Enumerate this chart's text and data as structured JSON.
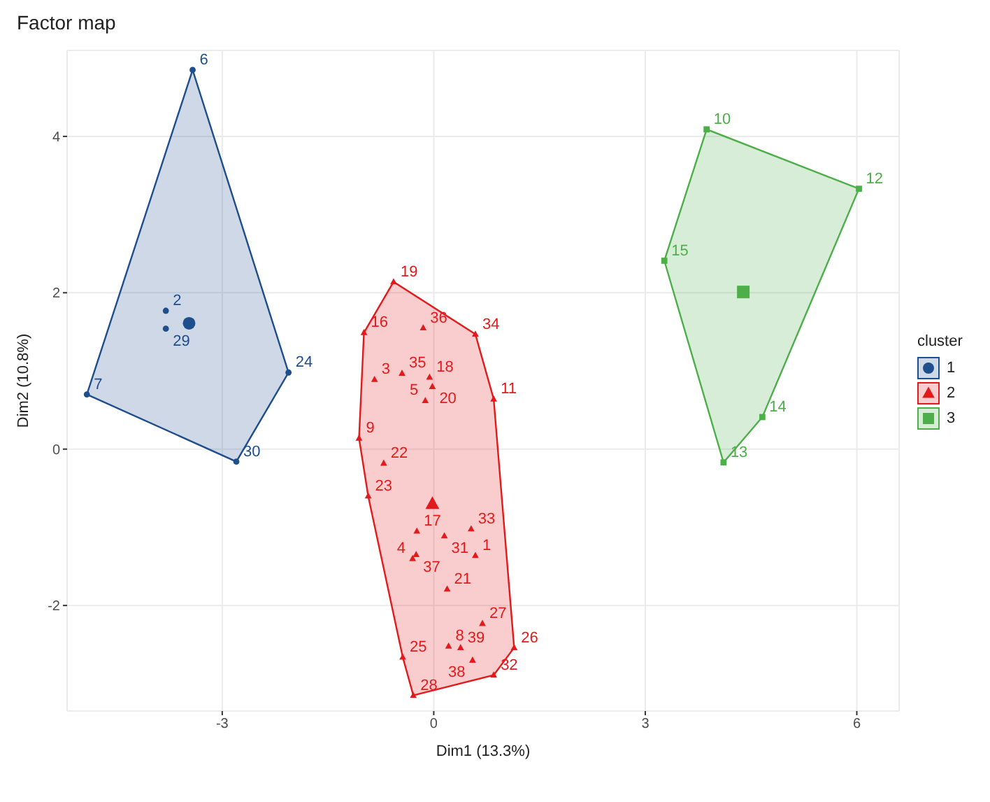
{
  "chart_data": {
    "type": "scatter",
    "title": "Factor map",
    "xlabel": "Dim1 (13.3%)",
    "ylabel": "Dim2 (10.8%)",
    "legend_title": "cluster",
    "legend": "right",
    "grid": true,
    "xlim": [
      -5.2,
      6.6
    ],
    "ylim": [
      -3.35,
      5.1
    ],
    "xticks": [
      -3,
      0,
      3,
      6
    ],
    "yticks": [
      -2,
      0,
      2,
      4
    ],
    "series": [
      {
        "name": "1",
        "color": "#1f4e8c",
        "marker": "circle",
        "x": [
          -3.42,
          -4.92,
          -3.8,
          -3.8,
          -2.06,
          -2.8
        ],
        "values": [
          4.85,
          0.7,
          1.77,
          1.54,
          0.98,
          -0.16
        ]
      },
      {
        "name": "2",
        "color": "#e31a1c",
        "marker": "triangle",
        "x": [
          -0.57,
          -0.15,
          0.59,
          -0.99,
          -0.06,
          -0.45,
          -0.84,
          -0.02,
          -0.12,
          0.85,
          -1.06,
          -0.71,
          -0.93,
          -0.24,
          0.15,
          0.53,
          -0.25,
          -0.3,
          0.59,
          0.19,
          0.69,
          1.14,
          0.21,
          0.38,
          0.55,
          0.85,
          -0.44,
          -0.29
        ],
        "values": [
          2.14,
          1.55,
          1.47,
          1.49,
          0.92,
          0.97,
          0.89,
          0.8,
          0.62,
          0.64,
          0.14,
          -0.18,
          -0.6,
          -1.05,
          -1.11,
          -1.02,
          -1.35,
          -1.4,
          -1.36,
          -1.79,
          -2.23,
          -2.54,
          -2.52,
          -2.54,
          -2.7,
          -2.89,
          -2.66,
          -3.15
        ]
      },
      {
        "name": "3",
        "color": "#4daf4a",
        "marker": "square",
        "x": [
          3.87,
          6.03,
          3.27,
          4.66,
          4.11
        ],
        "values": [
          4.09,
          3.33,
          2.41,
          0.41,
          -0.17
        ]
      },
      {
        "color": "#1f4e8c",
        "marker": "circle",
        "x": [
          -3.47
        ],
        "values": [
          1.61
        ]
      },
      {
        "color": "#e31a1c",
        "marker": "triangle",
        "x": [
          -0.02
        ],
        "values": [
          -0.7
        ]
      },
      {
        "color": "#4daf4a",
        "marker": "square",
        "x": [
          4.39
        ],
        "values": [
          2.01
        ]
      }
    ],
    "annotations": [
      {
        "text": "6",
        "x": -3.42,
        "y": 4.85
      },
      {
        "text": "7",
        "x": -4.92,
        "y": 0.7
      },
      {
        "text": "2",
        "x": -3.8,
        "y": 1.77
      },
      {
        "text": "29",
        "x": -3.8,
        "y": 1.54
      },
      {
        "text": "24",
        "x": -2.06,
        "y": 0.98
      },
      {
        "text": "30",
        "x": -2.8,
        "y": -0.16
      },
      {
        "text": "19",
        "x": -0.57,
        "y": 2.14
      },
      {
        "text": "36",
        "x": -0.15,
        "y": 1.55
      },
      {
        "text": "34",
        "x": 0.59,
        "y": 1.47
      },
      {
        "text": "16",
        "x": -0.99,
        "y": 1.49
      },
      {
        "text": "18",
        "x": -0.06,
        "y": 0.92
      },
      {
        "text": "35",
        "x": -0.45,
        "y": 0.97
      },
      {
        "text": "3",
        "x": -0.84,
        "y": 0.89
      },
      {
        "text": "20",
        "x": -0.02,
        "y": 0.8
      },
      {
        "text": "5",
        "x": -0.12,
        "y": 0.62
      },
      {
        "text": "11",
        "x": 0.85,
        "y": 0.64
      },
      {
        "text": "9",
        "x": -1.06,
        "y": 0.14
      },
      {
        "text": "22",
        "x": -0.71,
        "y": -0.18
      },
      {
        "text": "23",
        "x": -0.93,
        "y": -0.6
      },
      {
        "text": "17",
        "x": -0.24,
        "y": -1.05
      },
      {
        "text": "31",
        "x": 0.15,
        "y": -1.11
      },
      {
        "text": "33",
        "x": 0.53,
        "y": -1.02
      },
      {
        "text": "37",
        "x": -0.25,
        "y": -1.35
      },
      {
        "text": "4",
        "x": -0.3,
        "y": -1.4
      },
      {
        "text": "1",
        "x": 0.59,
        "y": -1.36
      },
      {
        "text": "21",
        "x": 0.19,
        "y": -1.79
      },
      {
        "text": "27",
        "x": 0.69,
        "y": -2.23
      },
      {
        "text": "26",
        "x": 1.14,
        "y": -2.54
      },
      {
        "text": "8",
        "x": 0.21,
        "y": -2.52
      },
      {
        "text": "39",
        "x": 0.38,
        "y": -2.54
      },
      {
        "text": "38",
        "x": 0.55,
        "y": -2.7
      },
      {
        "text": "32",
        "x": 0.85,
        "y": -2.89
      },
      {
        "text": "25",
        "x": -0.44,
        "y": -2.66
      },
      {
        "text": "28",
        "x": -0.29,
        "y": -3.15
      },
      {
        "text": "10",
        "x": 3.87,
        "y": 4.09
      },
      {
        "text": "12",
        "x": 6.03,
        "y": 3.33
      },
      {
        "text": "15",
        "x": 3.27,
        "y": 2.41
      },
      {
        "text": "14",
        "x": 4.66,
        "y": 0.41
      },
      {
        "text": "13",
        "x": 4.11,
        "y": -0.17
      }
    ]
  }
}
